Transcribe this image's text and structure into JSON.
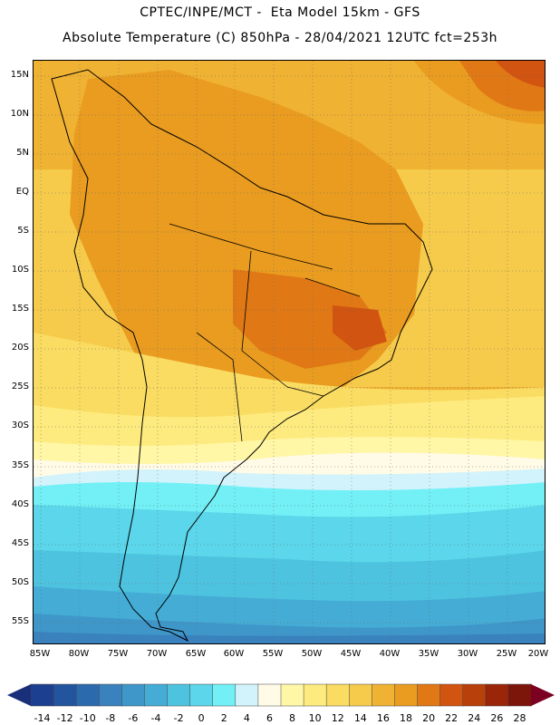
{
  "header": {
    "title_line1": "CPTEC/INPE/MCT -  Eta Model 15km - GFS",
    "title_line2": "Absolute Temperature (C) 850hPa - 28/04/2021 12UTC fct=253h"
  },
  "map": {
    "lat_labels": [
      "15N",
      "10N",
      "5N",
      "EQ",
      "5S",
      "10S",
      "15S",
      "20S",
      "25S",
      "30S",
      "35S",
      "40S",
      "45S",
      "50S",
      "55S"
    ],
    "lon_labels": [
      "85W",
      "80W",
      "75W",
      "70W",
      "65W",
      "60W",
      "55W",
      "50W",
      "45W",
      "40W",
      "35W",
      "30W",
      "25W",
      "20W"
    ]
  },
  "colorbar": {
    "labels": [
      "-14",
      "-12",
      "-10",
      "-8",
      "-6",
      "-4",
      "-2",
      "0",
      "2",
      "4",
      "6",
      "8",
      "10",
      "12",
      "14",
      "16",
      "18",
      "20",
      "22",
      "24",
      "26",
      "28"
    ],
    "colors": [
      "#1c3f8f",
      "#23559f",
      "#2c6aae",
      "#3a82bd",
      "#3f97c9",
      "#45add5",
      "#4ec3e0",
      "#5bd6ea",
      "#72f0f6",
      "#d2f3fb",
      "#fffbe6",
      "#fff6a6",
      "#fdeb7f",
      "#fadc62",
      "#f6cb4b",
      "#f0b232",
      "#e99c20",
      "#e07815",
      "#d15410",
      "#b8400a",
      "#9a2508",
      "#7c150a"
    ],
    "left_arrow_color": "#1a2f7a",
    "right_arrow_color": "#7c0022"
  }
}
